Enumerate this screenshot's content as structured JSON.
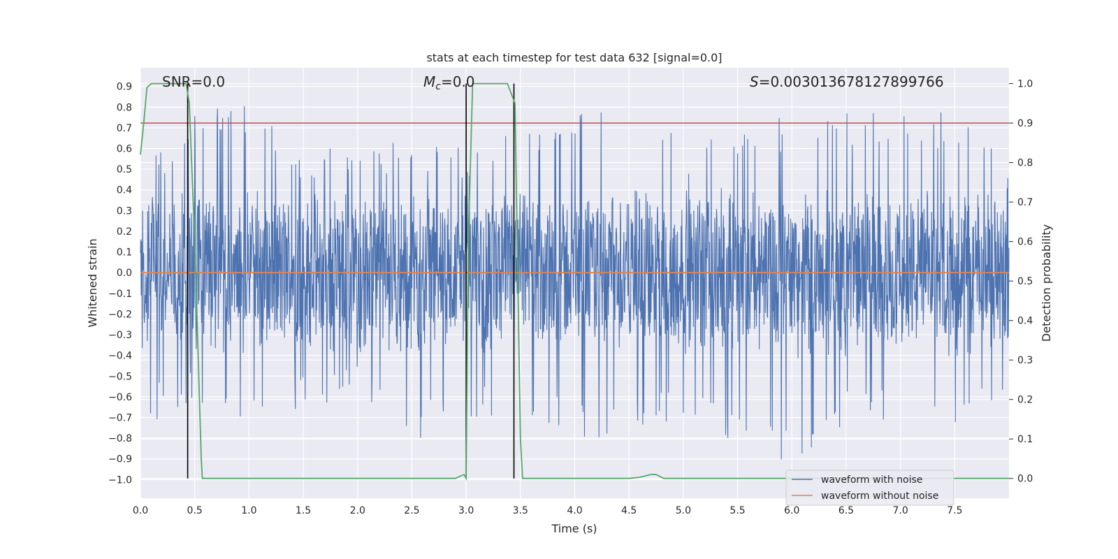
{
  "chart_data": {
    "type": "line",
    "title": "stats at each timestep for test data 632 [signal=0.0]",
    "xlabel": "Time (s)",
    "ylabel": "Whitened strain",
    "ylabel_right": "Detection probability",
    "xlim": [
      0.0,
      8.0
    ],
    "ylim": [
      -1.09,
      0.99
    ],
    "ylim_right": [
      -0.05,
      1.04
    ],
    "x_ticks": [
      "0.0",
      "0.5",
      "1.0",
      "1.5",
      "2.0",
      "2.5",
      "3.0",
      "3.5",
      "4.0",
      "4.5",
      "5.0",
      "5.5",
      "6.0",
      "6.5",
      "7.0",
      "7.5"
    ],
    "y_ticks": [
      "0.9",
      "0.8",
      "0.7",
      "0.6",
      "0.5",
      "0.4",
      "0.3",
      "0.2",
      "0.1",
      "0.0",
      "-0.1",
      "-0.2",
      "-0.3",
      "-0.4",
      "-0.5",
      "-0.6",
      "-0.7",
      "-0.8",
      "-0.9",
      "-1.0"
    ],
    "y_ticks_right": [
      "1.0",
      "0.9",
      "0.8",
      "0.7",
      "0.6",
      "0.5",
      "0.4",
      "0.3",
      "0.2",
      "0.1",
      "0.0"
    ],
    "grid": true,
    "legend_position": "bottom-right",
    "annotations": {
      "snr": "SNR=0.0",
      "mc": "=0.0",
      "mc_symbol": "M",
      "mc_sub": "c",
      "s": "=0.003013678127899766",
      "s_symbol": "S"
    },
    "series": [
      {
        "name": "waveform with noise",
        "color": "#4c72b0",
        "note_noise_envelope": {
          "x": [
            0.0,
            0.5,
            1.0,
            1.5,
            2.0,
            2.5,
            3.0,
            3.5,
            4.0,
            4.5,
            5.0,
            5.5,
            6.0,
            6.5,
            7.0,
            7.5,
            8.0
          ],
          "upper_peaks": [
            0.49,
            0.79,
            0.82,
            0.6,
            0.62,
            0.65,
            0.6,
            0.71,
            0.78,
            0.9,
            0.62,
            0.7,
            0.8,
            0.79,
            0.78,
            0.79,
            0.58
          ],
          "lower_peaks": [
            -0.75,
            -0.63,
            -0.73,
            -0.67,
            -0.6,
            -0.81,
            -0.75,
            -0.7,
            -0.83,
            -0.78,
            -0.73,
            -0.82,
            -0.99,
            -0.72,
            -0.73,
            -0.74,
            -0.62
          ]
        }
      },
      {
        "name": "waveform without noise",
        "color": "#dd8452",
        "x": [
          0.0,
          8.0
        ],
        "y": [
          0.0,
          0.0
        ]
      },
      {
        "name": "",
        "axis": "right",
        "color": "#55a868",
        "x": [
          0.0,
          0.03,
          0.06,
          0.1,
          0.3,
          0.42,
          0.45,
          0.5,
          0.56,
          0.57,
          2.9,
          2.98,
          3.0,
          3.02,
          3.06,
          3.1,
          3.2,
          3.38,
          3.45,
          3.5,
          3.52,
          4.5,
          4.6,
          4.7,
          4.75,
          4.82,
          4.9,
          8.0
        ],
        "y": [
          0.82,
          0.9,
          0.99,
          1.0,
          1.0,
          1.0,
          0.95,
          0.6,
          0.05,
          0.0,
          0.0,
          0.01,
          0.0,
          0.6,
          1.0,
          1.0,
          1.0,
          1.0,
          0.95,
          0.1,
          0.0,
          0.0,
          0.003,
          0.01,
          0.01,
          0.0,
          0.0,
          0.0
        ]
      }
    ],
    "threshold_right": 0.9,
    "threshold_color": "#c44e52",
    "vertical_markers_x": [
      0.435,
      3.0,
      3.44
    ]
  }
}
